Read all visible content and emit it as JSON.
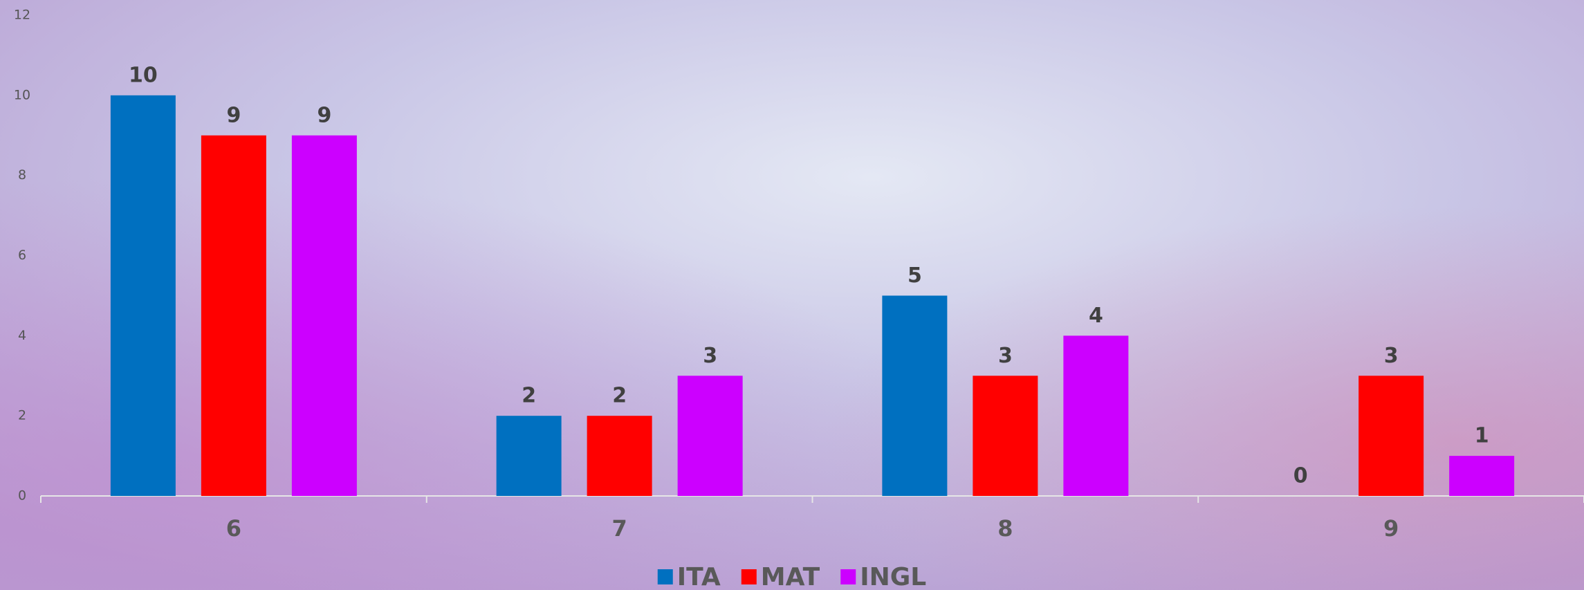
{
  "chart_data": {
    "type": "bar",
    "categories": [
      "6",
      "7",
      "8",
      "9"
    ],
    "series": [
      {
        "name": "ITA",
        "color": "#0070c0",
        "values": [
          10,
          2,
          5,
          0
        ]
      },
      {
        "name": "MAT",
        "color": "#ff0000",
        "values": [
          9,
          2,
          3,
          3
        ]
      },
      {
        "name": "INGL",
        "color": "#cc00ff",
        "values": [
          9,
          3,
          4,
          1
        ]
      }
    ],
    "ylim": [
      0,
      12
    ],
    "yticks": [
      0,
      2,
      4,
      6,
      8,
      10,
      12
    ],
    "grid": false,
    "legend": "bottom"
  }
}
